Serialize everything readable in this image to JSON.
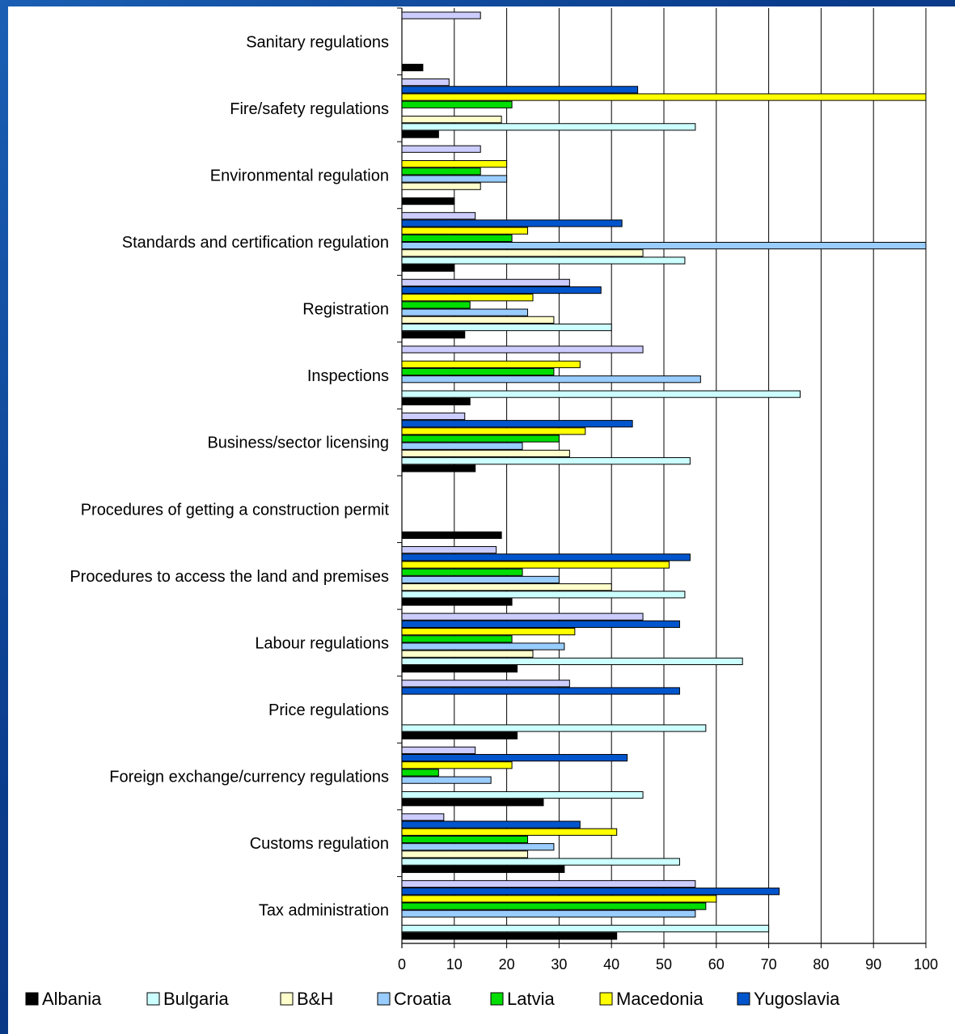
{
  "chart_data": {
    "type": "bar",
    "orientation": "horizontal",
    "categories": [
      "Sanitary regulations",
      "Fire/safety regulations",
      "Environmental regulation",
      "Standards and certification regulation",
      "Registration",
      "Inspections",
      "Business/sector licensing",
      "Procedures of getting a construction permit",
      "Procedures to access the land and premises",
      "Labour regulations",
      "Price regulations",
      "Foreign exchange/currency regulations",
      "Customs regulation",
      "Tax administration"
    ],
    "series": [
      {
        "name": "Albania",
        "color": "#000000",
        "values": [
          4,
          7,
          10,
          10,
          12,
          13,
          14,
          19,
          21,
          22,
          22,
          27,
          31,
          41
        ]
      },
      {
        "name": "Bulgaria",
        "color": "#ccffff",
        "values": [
          0,
          56,
          0,
          54,
          40,
          76,
          55,
          0,
          54,
          65,
          58,
          46,
          53,
          70
        ]
      },
      {
        "name": "B&H",
        "color": "#ffffcc",
        "values": [
          0,
          19,
          15,
          46,
          29,
          0,
          32,
          0,
          40,
          25,
          0,
          0,
          24,
          0
        ]
      },
      {
        "name": "Croatia",
        "color": "#99ccff",
        "values": [
          0,
          0,
          20,
          100,
          24,
          57,
          23,
          0,
          30,
          31,
          0,
          17,
          29,
          56
        ]
      },
      {
        "name": "Latvia",
        "color": "#00dd00",
        "values": [
          0,
          21,
          15,
          21,
          13,
          29,
          30,
          0,
          23,
          21,
          0,
          7,
          24,
          58
        ]
      },
      {
        "name": "Macedonia",
        "color": "#ffff00",
        "values": [
          0,
          100,
          20,
          24,
          25,
          34,
          35,
          0,
          51,
          33,
          0,
          21,
          41,
          60
        ]
      },
      {
        "name": "Yugoslavia",
        "color": "#0055cc",
        "values": [
          0,
          45,
          0,
          42,
          38,
          0,
          44,
          0,
          55,
          53,
          53,
          43,
          34,
          72
        ]
      },
      {
        "color": "#ccccff",
        "values": [
          15,
          9,
          15,
          14,
          32,
          46,
          12,
          0,
          18,
          46,
          32,
          14,
          8,
          56
        ]
      }
    ],
    "x_ticks": [
      0,
      10,
      20,
      30,
      40,
      50,
      60,
      70,
      80,
      90,
      100
    ],
    "xlim": [
      0,
      100
    ],
    "grid": true,
    "legend_placement": "bottom"
  }
}
